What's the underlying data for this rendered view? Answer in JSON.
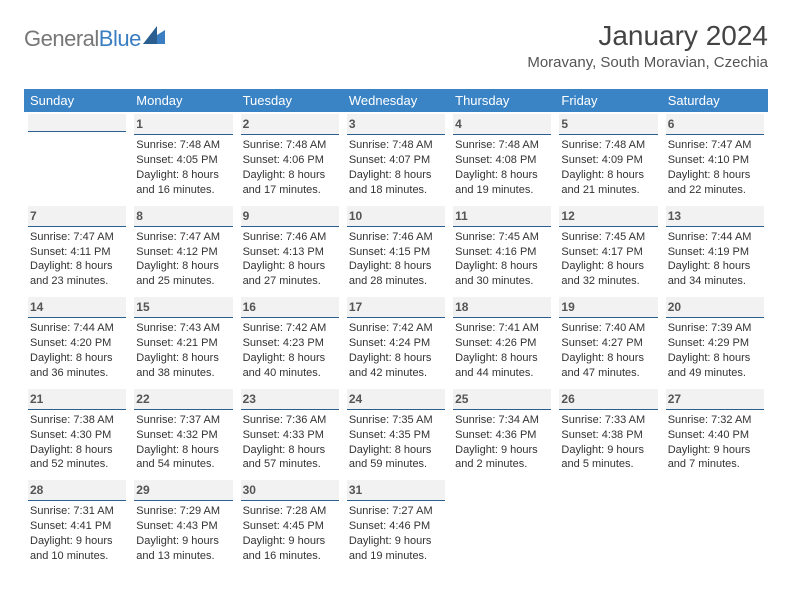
{
  "logo": {
    "gray": "General",
    "blue": "Blue"
  },
  "title": "January 2024",
  "location": "Moravany, South Moravian, Czechia",
  "weekdays": [
    "Sunday",
    "Monday",
    "Tuesday",
    "Wednesday",
    "Thursday",
    "Friday",
    "Saturday"
  ],
  "colors": {
    "header_bg": "#3a84c6",
    "header_text": "#ffffff",
    "daynum_border": "#2b5f8f",
    "daynum_bg": "#f2f2f2",
    "text": "#333333",
    "background": "#ffffff"
  },
  "typography": {
    "title_fontsize": 28,
    "location_fontsize": 15,
    "weekday_fontsize": 13,
    "cell_fontsize": 11,
    "daynum_fontsize": 12
  },
  "layout": {
    "columns": 7,
    "rows": 6,
    "first_weekday_index": 1,
    "days_in_month": 31
  },
  "days": {
    "1": {
      "sunrise": "7:48 AM",
      "sunset": "4:05 PM",
      "daylight": "8 hours and 16 minutes."
    },
    "2": {
      "sunrise": "7:48 AM",
      "sunset": "4:06 PM",
      "daylight": "8 hours and 17 minutes."
    },
    "3": {
      "sunrise": "7:48 AM",
      "sunset": "4:07 PM",
      "daylight": "8 hours and 18 minutes."
    },
    "4": {
      "sunrise": "7:48 AM",
      "sunset": "4:08 PM",
      "daylight": "8 hours and 19 minutes."
    },
    "5": {
      "sunrise": "7:48 AM",
      "sunset": "4:09 PM",
      "daylight": "8 hours and 21 minutes."
    },
    "6": {
      "sunrise": "7:47 AM",
      "sunset": "4:10 PM",
      "daylight": "8 hours and 22 minutes."
    },
    "7": {
      "sunrise": "7:47 AM",
      "sunset": "4:11 PM",
      "daylight": "8 hours and 23 minutes."
    },
    "8": {
      "sunrise": "7:47 AM",
      "sunset": "4:12 PM",
      "daylight": "8 hours and 25 minutes."
    },
    "9": {
      "sunrise": "7:46 AM",
      "sunset": "4:13 PM",
      "daylight": "8 hours and 27 minutes."
    },
    "10": {
      "sunrise": "7:46 AM",
      "sunset": "4:15 PM",
      "daylight": "8 hours and 28 minutes."
    },
    "11": {
      "sunrise": "7:45 AM",
      "sunset": "4:16 PM",
      "daylight": "8 hours and 30 minutes."
    },
    "12": {
      "sunrise": "7:45 AM",
      "sunset": "4:17 PM",
      "daylight": "8 hours and 32 minutes."
    },
    "13": {
      "sunrise": "7:44 AM",
      "sunset": "4:19 PM",
      "daylight": "8 hours and 34 minutes."
    },
    "14": {
      "sunrise": "7:44 AM",
      "sunset": "4:20 PM",
      "daylight": "8 hours and 36 minutes."
    },
    "15": {
      "sunrise": "7:43 AM",
      "sunset": "4:21 PM",
      "daylight": "8 hours and 38 minutes."
    },
    "16": {
      "sunrise": "7:42 AM",
      "sunset": "4:23 PM",
      "daylight": "8 hours and 40 minutes."
    },
    "17": {
      "sunrise": "7:42 AM",
      "sunset": "4:24 PM",
      "daylight": "8 hours and 42 minutes."
    },
    "18": {
      "sunrise": "7:41 AM",
      "sunset": "4:26 PM",
      "daylight": "8 hours and 44 minutes."
    },
    "19": {
      "sunrise": "7:40 AM",
      "sunset": "4:27 PM",
      "daylight": "8 hours and 47 minutes."
    },
    "20": {
      "sunrise": "7:39 AM",
      "sunset": "4:29 PM",
      "daylight": "8 hours and 49 minutes."
    },
    "21": {
      "sunrise": "7:38 AM",
      "sunset": "4:30 PM",
      "daylight": "8 hours and 52 minutes."
    },
    "22": {
      "sunrise": "7:37 AM",
      "sunset": "4:32 PM",
      "daylight": "8 hours and 54 minutes."
    },
    "23": {
      "sunrise": "7:36 AM",
      "sunset": "4:33 PM",
      "daylight": "8 hours and 57 minutes."
    },
    "24": {
      "sunrise": "7:35 AM",
      "sunset": "4:35 PM",
      "daylight": "8 hours and 59 minutes."
    },
    "25": {
      "sunrise": "7:34 AM",
      "sunset": "4:36 PM",
      "daylight": "9 hours and 2 minutes."
    },
    "26": {
      "sunrise": "7:33 AM",
      "sunset": "4:38 PM",
      "daylight": "9 hours and 5 minutes."
    },
    "27": {
      "sunrise": "7:32 AM",
      "sunset": "4:40 PM",
      "daylight": "9 hours and 7 minutes."
    },
    "28": {
      "sunrise": "7:31 AM",
      "sunset": "4:41 PM",
      "daylight": "9 hours and 10 minutes."
    },
    "29": {
      "sunrise": "7:29 AM",
      "sunset": "4:43 PM",
      "daylight": "9 hours and 13 minutes."
    },
    "30": {
      "sunrise": "7:28 AM",
      "sunset": "4:45 PM",
      "daylight": "9 hours and 16 minutes."
    },
    "31": {
      "sunrise": "7:27 AM",
      "sunset": "4:46 PM",
      "daylight": "9 hours and 19 minutes."
    }
  },
  "labels": {
    "sunrise": "Sunrise: ",
    "sunset": "Sunset: ",
    "daylight": "Daylight: "
  }
}
